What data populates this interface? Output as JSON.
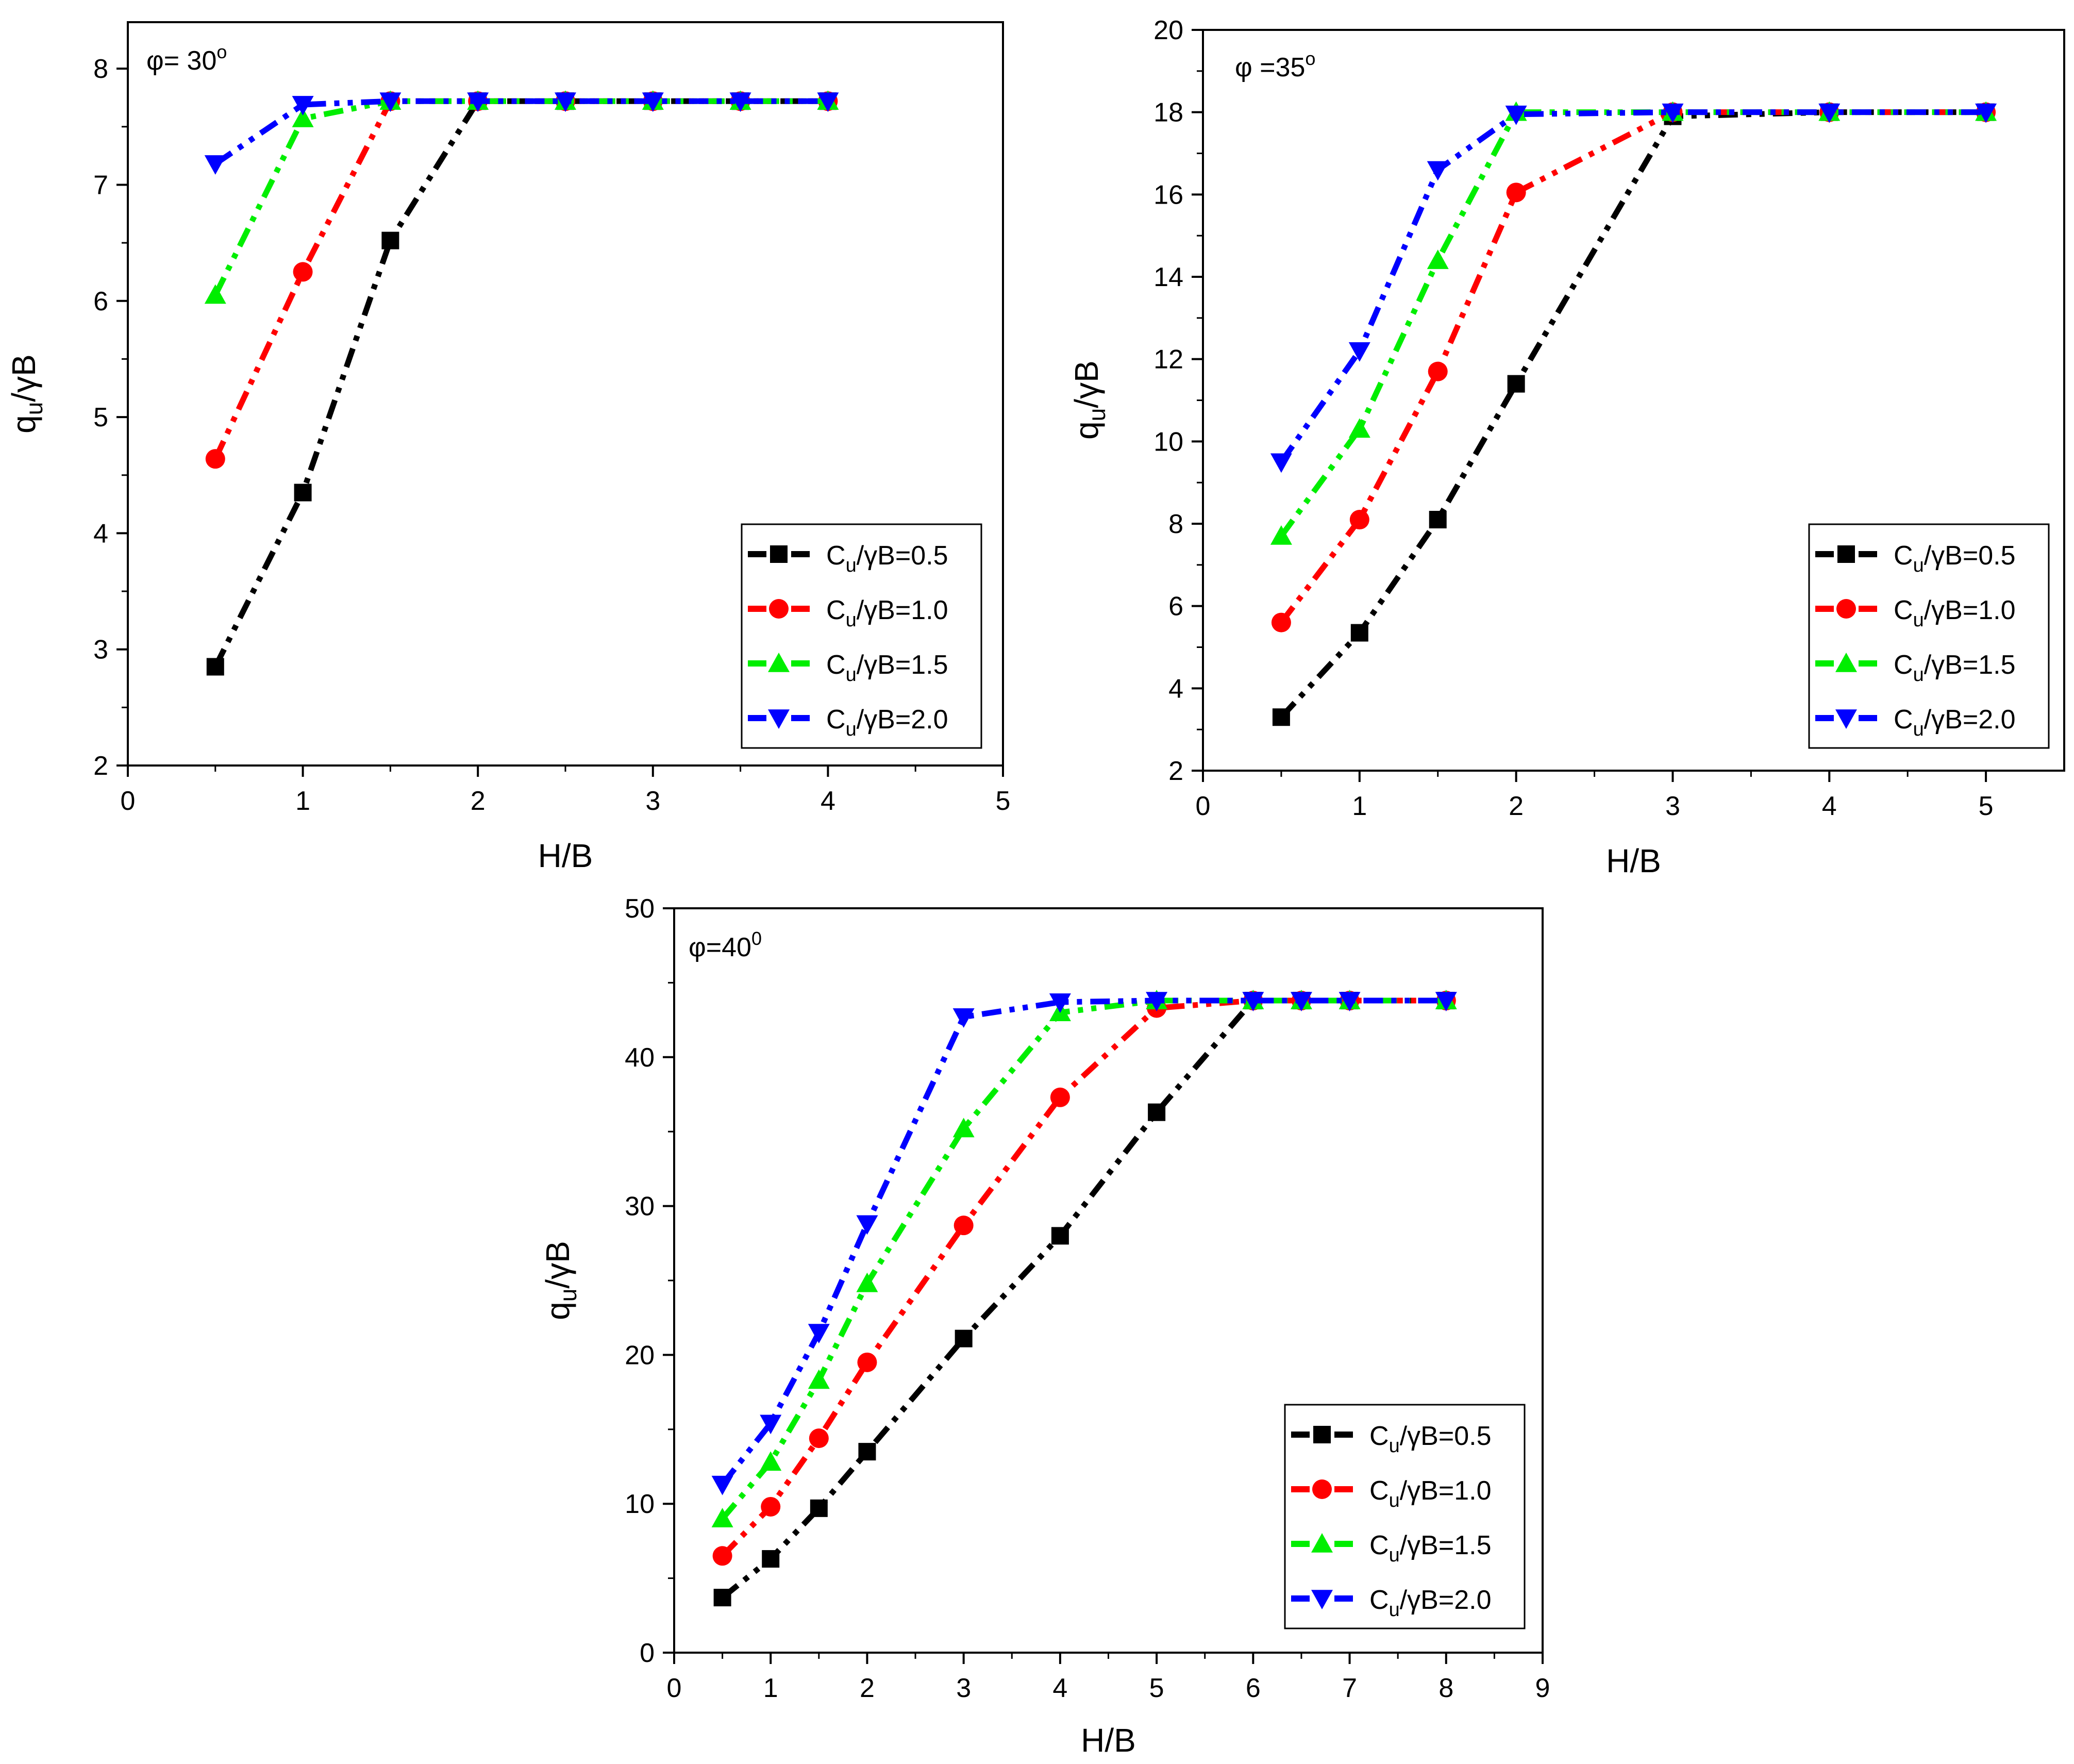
{
  "chart_data": [
    {
      "type": "line",
      "title": "φ= 30",
      "title_superscript": "o",
      "xlabel": "H/B",
      "ylabel_base": "q",
      "ylabel_sub": "u",
      "ylabel_tail": "/γB",
      "xlim": [
        0,
        5
      ],
      "ylim": [
        2,
        8.4
      ],
      "xticks": [
        0,
        1,
        2,
        3,
        4,
        5
      ],
      "yticks": [
        2,
        3,
        4,
        5,
        6,
        7,
        8
      ],
      "legend_position": "bottom-right",
      "series": [
        {
          "name": "C_u/γB=0.5",
          "label_base": "C",
          "label_sub": "u",
          "label_tail": "/γB=0.5",
          "color": "#000000",
          "marker": "square",
          "x": [
            0.5,
            1,
            1.5,
            2,
            2.5,
            3,
            3.5,
            4
          ],
          "values": [
            2.85,
            4.35,
            6.52,
            7.72,
            7.72,
            7.72,
            7.72,
            7.72
          ]
        },
        {
          "name": "C_u/γB=1.0",
          "label_base": "C",
          "label_sub": "u",
          "label_tail": "/γB=1.0",
          "color": "#ff0000",
          "marker": "circle",
          "x": [
            0.5,
            1,
            1.5,
            2,
            2.5,
            3,
            3.5,
            4
          ],
          "values": [
            4.64,
            6.25,
            7.72,
            7.72,
            7.72,
            7.72,
            7.72,
            7.72
          ]
        },
        {
          "name": "C_u/γB=1.5",
          "label_base": "C",
          "label_sub": "u",
          "label_tail": "/γB=1.5",
          "color": "#00ee00",
          "marker": "triangle-up",
          "x": [
            0.5,
            1,
            1.5,
            2,
            2.5,
            3,
            3.5,
            4
          ],
          "values": [
            6.05,
            7.57,
            7.72,
            7.72,
            7.72,
            7.72,
            7.72,
            7.72
          ]
        },
        {
          "name": "C_u/γB=2.0",
          "label_base": "C",
          "label_sub": "u",
          "label_tail": "/γB=2.0",
          "color": "#0000ff",
          "marker": "triangle-down",
          "x": [
            0.5,
            1,
            1.5,
            2,
            2.5,
            3,
            3.5,
            4
          ],
          "values": [
            7.18,
            7.69,
            7.72,
            7.72,
            7.72,
            7.72,
            7.72,
            7.72
          ]
        }
      ]
    },
    {
      "type": "line",
      "title": "φ =35",
      "title_superscript": "o",
      "xlabel": "H/B",
      "ylabel_base": "q",
      "ylabel_sub": "u",
      "ylabel_tail": "/γB",
      "xlim": [
        0,
        5.5
      ],
      "ylim": [
        2,
        20
      ],
      "xticks": [
        0,
        1,
        2,
        3,
        4,
        5
      ],
      "yticks": [
        2,
        4,
        6,
        8,
        10,
        12,
        14,
        16,
        18,
        20
      ],
      "legend_position": "bottom-right",
      "series": [
        {
          "name": "C_u/γB=0.5",
          "label_base": "C",
          "label_sub": "u",
          "label_tail": "/γB=0.5",
          "color": "#000000",
          "marker": "square",
          "x": [
            0.5,
            1,
            1.5,
            2,
            3,
            4,
            5
          ],
          "values": [
            3.3,
            5.35,
            8.1,
            11.4,
            17.9,
            18.0,
            18.0
          ]
        },
        {
          "name": "C_u/γB=1.0",
          "label_base": "C",
          "label_sub": "u",
          "label_tail": "/γB=1.0",
          "color": "#ff0000",
          "marker": "circle",
          "x": [
            0.5,
            1,
            1.5,
            2,
            3,
            4,
            5
          ],
          "values": [
            5.6,
            8.1,
            11.7,
            16.05,
            18.0,
            18.0,
            18.0
          ]
        },
        {
          "name": "C_u/γB=1.5",
          "label_base": "C",
          "label_sub": "u",
          "label_tail": "/γB=1.5",
          "color": "#00ee00",
          "marker": "triangle-up",
          "x": [
            0.5,
            1,
            1.5,
            2,
            3,
            4,
            5
          ],
          "values": [
            7.7,
            10.3,
            14.4,
            18.0,
            18.0,
            18.0,
            18.0
          ]
        },
        {
          "name": "C_u/γB=2.0",
          "label_base": "C",
          "label_sub": "u",
          "label_tail": "/γB=2.0",
          "color": "#0000ff",
          "marker": "triangle-down",
          "x": [
            0.5,
            1,
            1.5,
            2,
            3,
            4,
            5
          ],
          "values": [
            9.5,
            12.2,
            16.6,
            17.95,
            18.0,
            18.0,
            18.0
          ]
        }
      ]
    },
    {
      "type": "line",
      "title": "φ=40",
      "title_superscript": "0",
      "xlabel": "H/B",
      "ylabel_base": "q",
      "ylabel_sub": "u",
      "ylabel_tail": "/γB",
      "xlim": [
        0,
        9
      ],
      "ylim": [
        0,
        50
      ],
      "xticks": [
        0,
        1,
        2,
        3,
        4,
        5,
        6,
        7,
        8,
        9
      ],
      "yticks": [
        0,
        10,
        20,
        30,
        40,
        50
      ],
      "legend_position": "bottom-right",
      "series": [
        {
          "name": "C_u/γB=0.5",
          "label_base": "C",
          "label_sub": "u",
          "label_tail": "/γB=0.5",
          "color": "#000000",
          "marker": "square",
          "x": [
            0.5,
            1,
            1.5,
            2,
            3,
            4,
            5,
            6,
            6.5,
            7,
            8
          ],
          "values": [
            3.7,
            6.3,
            9.7,
            13.5,
            21.1,
            28.0,
            36.3,
            43.8,
            43.8,
            43.8,
            43.8
          ]
        },
        {
          "name": "C_u/γB=1.0",
          "label_base": "C",
          "label_sub": "u",
          "label_tail": "/γB=1.0",
          "color": "#ff0000",
          "marker": "circle",
          "x": [
            0.5,
            1,
            1.5,
            2,
            3,
            4,
            5,
            6,
            6.5,
            7,
            8
          ],
          "values": [
            6.5,
            9.8,
            14.4,
            19.5,
            28.7,
            37.3,
            43.3,
            43.8,
            43.8,
            43.8,
            43.8
          ]
        },
        {
          "name": "C_u/γB=1.5",
          "label_base": "C",
          "label_sub": "u",
          "label_tail": "/γB=1.5",
          "color": "#00ee00",
          "marker": "triangle-up",
          "x": [
            0.5,
            1,
            1.5,
            2,
            3,
            4,
            5,
            6,
            6.5,
            7,
            8
          ],
          "values": [
            9.0,
            12.8,
            18.3,
            24.8,
            35.2,
            43.0,
            43.8,
            43.8,
            43.8,
            43.8,
            43.8
          ]
        },
        {
          "name": "C_u/γB=2.0",
          "label_base": "C",
          "label_sub": "u",
          "label_tail": "/γB=2.0",
          "color": "#0000ff",
          "marker": "triangle-down",
          "x": [
            0.5,
            1,
            1.5,
            2,
            3,
            4,
            5,
            6,
            6.5,
            7,
            8
          ],
          "values": [
            11.3,
            15.4,
            21.5,
            28.8,
            42.7,
            43.7,
            43.8,
            43.8,
            43.8,
            43.8,
            43.8
          ]
        }
      ]
    }
  ]
}
